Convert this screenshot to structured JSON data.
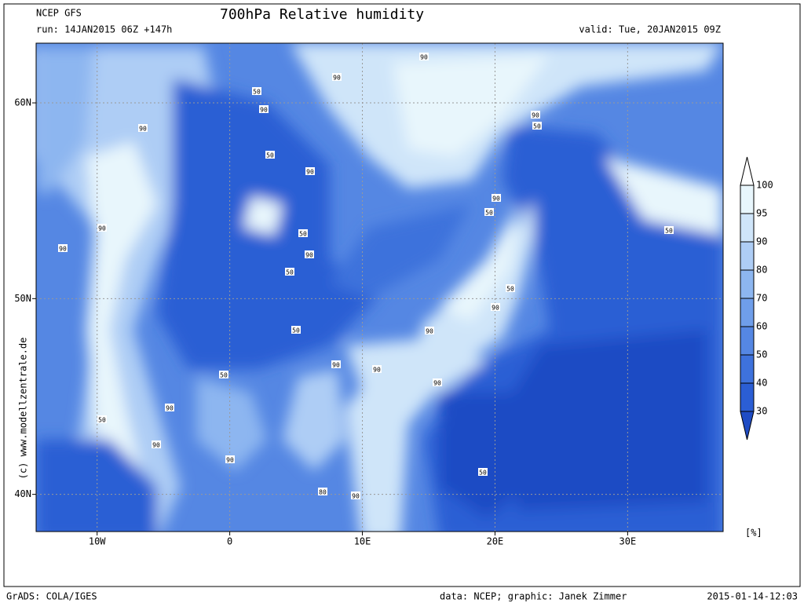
{
  "header": {
    "model": "NCEP GFS",
    "title": "700hPa Relative humidity",
    "run": "run: 14JAN2015 06Z +147h",
    "valid": "valid: Tue, 20JAN2015 09Z"
  },
  "map": {
    "xlim": [
      -14.6,
      37.2
    ],
    "ylim": [
      38.1,
      63.05
    ],
    "xticks": [
      {
        "value": -10,
        "label": "10W"
      },
      0,
      {
        "value": 10,
        "label": "10E"
      },
      {
        "value": 20,
        "label": "20E"
      },
      {
        "value": 30,
        "label": "30E"
      }
    ],
    "yticks": [
      {
        "value": 40,
        "label": "40N"
      },
      {
        "value": 50,
        "label": "50N"
      },
      {
        "value": 60,
        "label": "60N"
      }
    ],
    "grid": true,
    "contour_labels": [
      50,
      90,
      90,
      90,
      90,
      50,
      90,
      90,
      90,
      50,
      90,
      50,
      50,
      50,
      90,
      50,
      90,
      90,
      80,
      90,
      90,
      90,
      90,
      90,
      50,
      50,
      90,
      90,
      50,
      90,
      50,
      50
    ]
  },
  "colorbar": {
    "levels": [
      30,
      40,
      50,
      60,
      70,
      80,
      90,
      95,
      100
    ],
    "colors": [
      "#1f4cc4",
      "#2b5ed4",
      "#3e72dc",
      "#5587e3",
      "#6f9eea",
      "#8db6f0",
      "#aecdf5",
      "#cfe5f9",
      "#e8f6fc",
      "#ffffff"
    ],
    "unit": "[%]"
  },
  "credit": "(c) www.modellzentrale.de",
  "footer": {
    "left": "GrADS: COLA/IGES",
    "center": "data: NCEP; graphic: Janek Zimmer",
    "right": "2015-01-14-12:03"
  }
}
